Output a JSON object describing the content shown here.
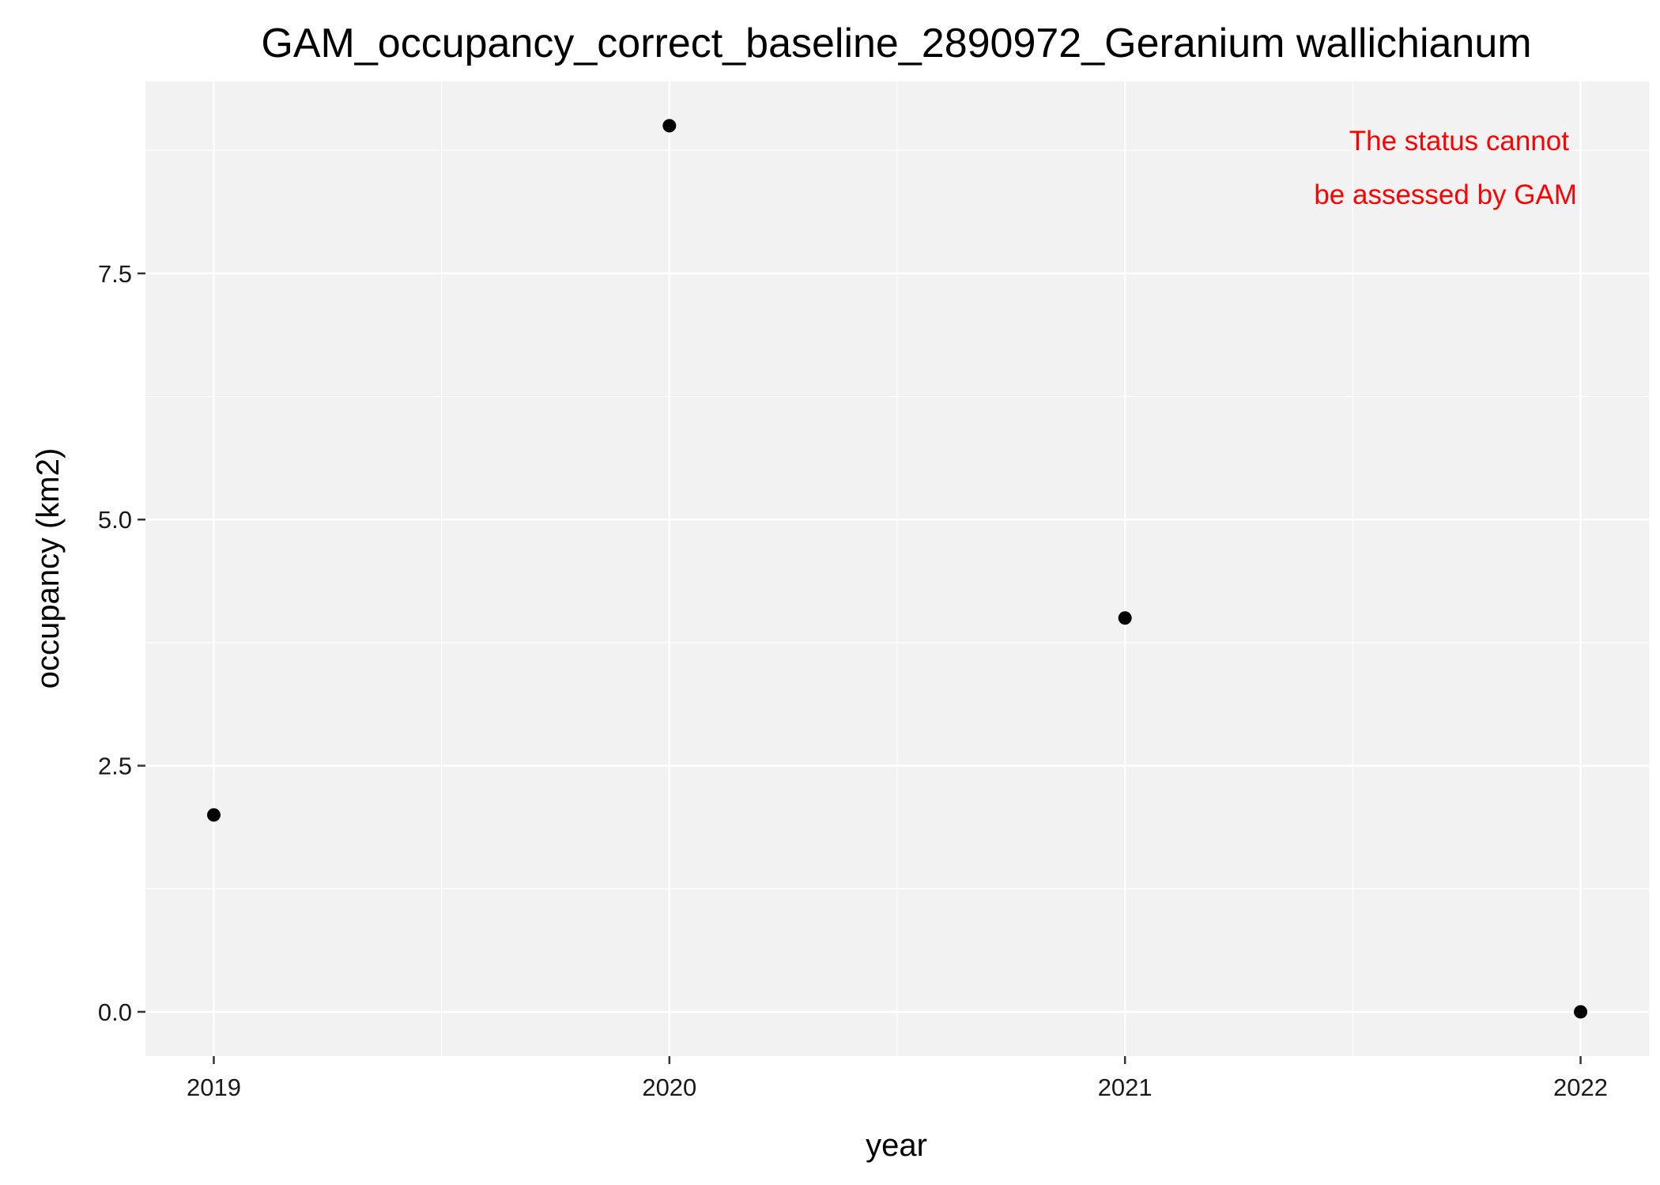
{
  "chart_data": {
    "type": "scatter",
    "title": "GAM_occupancy_correct_baseline_2890972_Geranium wallichianum",
    "xlabel": "year",
    "ylabel": "occupancy (km2)",
    "x": [
      2019,
      2020,
      2021,
      2022
    ],
    "series": [
      {
        "values": [
          2,
          9,
          4,
          0
        ]
      }
    ],
    "xlim": [
      2018.85,
      2022.15
    ],
    "ylim": [
      -0.45,
      9.45
    ],
    "xticks": [
      2019,
      2020,
      2021,
      2022
    ],
    "xtick_labels": [
      "2019",
      "2020",
      "2021",
      "2022"
    ],
    "yticks": [
      0,
      2.5,
      5,
      7.5
    ],
    "ytick_labels": [
      "0.0",
      "2.5",
      "5.0",
      "7.5"
    ],
    "annotation": {
      "lines": [
        "The status cannot",
        "be assessed by GAM"
      ],
      "color": "#ff0000"
    },
    "grid": true,
    "colors": {
      "panel_background": "#f2f2f2",
      "grid": "#ffffff",
      "point": "#000000"
    }
  }
}
